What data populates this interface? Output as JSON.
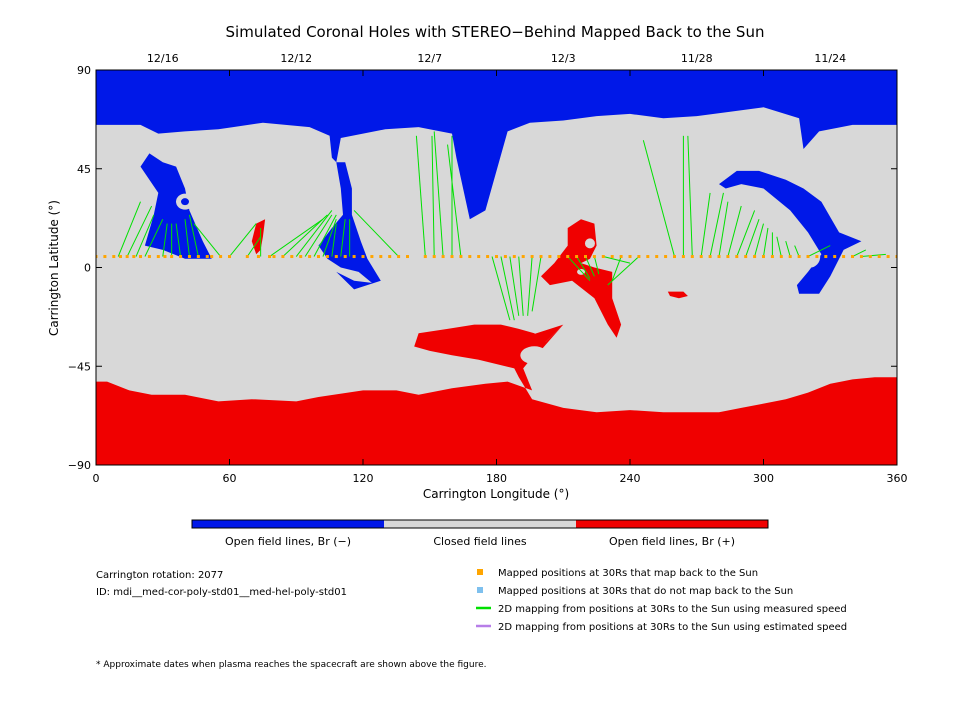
{
  "title": "Simulated Coronal Holes with STEREO−Behind Mapped Back to the Sun",
  "colors": {
    "open_negative": "#0018e8",
    "closed": "#d8d8d8",
    "open_positive": "#f00000",
    "mapped_point": "#ffa500",
    "unmapped_point": "#7ec0ee",
    "measured_line": "#00e000",
    "estimated_line": "#b77ee8"
  },
  "chart_data": {
    "type": "heatmap",
    "title": "Simulated Coronal Holes with STEREO−Behind Mapped Back to the Sun",
    "xlabel": "Carrington Longitude (°)",
    "ylabel": "Carrington Latitude (°)",
    "xlim": [
      0,
      360
    ],
    "ylim": [
      -90,
      90
    ],
    "x_ticks": [
      0,
      60,
      120,
      180,
      240,
      300,
      360
    ],
    "y_ticks": [
      90,
      45,
      0,
      -45,
      -90
    ],
    "date_ticks": [
      {
        "label": "12/16",
        "lon": 30
      },
      {
        "label": "12/12",
        "lon": 90
      },
      {
        "label": "12/7",
        "lon": 150
      },
      {
        "label": "12/3",
        "lon": 210
      },
      {
        "label": "11/28",
        "lon": 270
      },
      {
        "label": "11/24",
        "lon": 330
      }
    ],
    "colorbar": [
      {
        "label": "Open field lines, Br (−)",
        "color": "#0018e8"
      },
      {
        "label": "Closed field lines",
        "color": "#d8d8d8"
      },
      {
        "label": "Open field lines, Br (+)",
        "color": "#f00000"
      }
    ],
    "regions": {
      "north_polar_hole_negative": [
        [
          0,
          90
        ],
        [
          360,
          90
        ],
        [
          360,
          65
        ],
        [
          340,
          65
        ],
        [
          325,
          62
        ],
        [
          318,
          54
        ],
        [
          316,
          68
        ],
        [
          300,
          73
        ],
        [
          285,
          71
        ],
        [
          270,
          69
        ],
        [
          255,
          68
        ],
        [
          240,
          70
        ],
        [
          225,
          69
        ],
        [
          210,
          67
        ],
        [
          195,
          66
        ],
        [
          185,
          62
        ],
        [
          175,
          26
        ],
        [
          168,
          22
        ],
        [
          162,
          50
        ],
        [
          160,
          61
        ],
        [
          145,
          64
        ],
        [
          130,
          63
        ],
        [
          120,
          61
        ],
        [
          110,
          59
        ],
        [
          108,
          48
        ],
        [
          106,
          50
        ],
        [
          105,
          60
        ],
        [
          96,
          64
        ],
        [
          75,
          66
        ],
        [
          55,
          63
        ],
        [
          40,
          62
        ],
        [
          28,
          61
        ],
        [
          20,
          65
        ],
        [
          0,
          65
        ]
      ],
      "south_polar_hole_positive": [
        [
          0,
          -90
        ],
        [
          360,
          -90
        ],
        [
          360,
          -50
        ],
        [
          350,
          -50
        ],
        [
          340,
          -51
        ],
        [
          330,
          -53
        ],
        [
          320,
          -57
        ],
        [
          310,
          -60
        ],
        [
          300,
          -62
        ],
        [
          290,
          -64
        ],
        [
          280,
          -66
        ],
        [
          270,
          -66
        ],
        [
          255,
          -66
        ],
        [
          240,
          -65
        ],
        [
          225,
          -66
        ],
        [
          210,
          -64
        ],
        [
          196,
          -60
        ],
        [
          190,
          -50
        ],
        [
          184,
          -38
        ],
        [
          186,
          -34
        ],
        [
          198,
          -30
        ],
        [
          210,
          -26
        ],
        [
          200,
          -36
        ],
        [
          192,
          -46
        ],
        [
          196,
          -56
        ],
        [
          185,
          -52
        ],
        [
          175,
          -53
        ],
        [
          160,
          -55
        ],
        [
          145,
          -58
        ],
        [
          135,
          -56
        ],
        [
          120,
          -56
        ],
        [
          100,
          -59
        ],
        [
          90,
          -61
        ],
        [
          70,
          -60
        ],
        [
          55,
          -61
        ],
        [
          40,
          -58
        ],
        [
          25,
          -58
        ],
        [
          15,
          -56
        ],
        [
          5,
          -52
        ],
        [
          0,
          -52
        ]
      ],
      "negative_hole_lon30": [
        [
          20,
          46
        ],
        [
          24,
          40
        ],
        [
          28,
          34
        ],
        [
          26,
          24
        ],
        [
          22,
          10
        ],
        [
          30,
          8
        ],
        [
          40,
          4
        ],
        [
          52,
          4
        ],
        [
          48,
          12
        ],
        [
          42,
          26
        ],
        [
          40,
          36
        ],
        [
          36,
          46
        ],
        [
          30,
          48
        ],
        [
          24,
          52
        ]
      ],
      "negative_hole_lon110": [
        [
          108,
          48
        ],
        [
          110,
          36
        ],
        [
          111,
          24
        ],
        [
          106,
          18
        ],
        [
          100,
          10
        ],
        [
          104,
          4
        ],
        [
          110,
          0
        ],
        [
          118,
          -2
        ],
        [
          124,
          -7
        ],
        [
          116,
          -6
        ],
        [
          108,
          -2
        ],
        [
          116,
          -10
        ],
        [
          128,
          -6
        ],
        [
          122,
          4
        ],
        [
          119,
          12
        ],
        [
          115,
          24
        ],
        [
          115,
          36
        ],
        [
          112,
          48
        ]
      ],
      "negative_hole_lon300": [
        [
          283,
          36
        ],
        [
          290,
          38
        ],
        [
          300,
          36
        ],
        [
          312,
          26
        ],
        [
          320,
          16
        ],
        [
          326,
          6
        ],
        [
          320,
          -2
        ],
        [
          315,
          -8
        ],
        [
          316,
          -12
        ],
        [
          325,
          -12
        ],
        [
          330,
          -4
        ],
        [
          336,
          8
        ],
        [
          344,
          12
        ],
        [
          334,
          16
        ],
        [
          326,
          30
        ],
        [
          318,
          36
        ],
        [
          310,
          40
        ],
        [
          298,
          44
        ],
        [
          288,
          44
        ],
        [
          280,
          38
        ]
      ],
      "positive_hole_lon215": [
        [
          212,
          18
        ],
        [
          218,
          22
        ],
        [
          224,
          20
        ],
        [
          225,
          10
        ],
        [
          222,
          4
        ],
        [
          218,
          2
        ],
        [
          224,
          0
        ],
        [
          232,
          -2
        ],
        [
          232,
          -14
        ],
        [
          236,
          -26
        ],
        [
          234,
          -32
        ],
        [
          230,
          -26
        ],
        [
          224,
          -14
        ],
        [
          214,
          -6
        ],
        [
          204,
          -8
        ],
        [
          200,
          -4
        ],
        [
          206,
          2
        ],
        [
          212,
          10
        ]
      ],
      "positive_hole_lon200_south": [
        [
          145,
          -30
        ],
        [
          158,
          -28
        ],
        [
          170,
          -26
        ],
        [
          182,
          -26
        ],
        [
          190,
          -28
        ],
        [
          197,
          -30
        ],
        [
          202,
          -34
        ],
        [
          210,
          -26
        ],
        [
          198,
          -40
        ],
        [
          188,
          -46
        ],
        [
          172,
          -42
        ],
        [
          160,
          -40
        ],
        [
          150,
          -38
        ],
        [
          143,
          -36
        ]
      ],
      "positive_hole_lon73": [
        [
          72,
          20
        ],
        [
          76,
          22
        ],
        [
          75,
          14
        ],
        [
          74,
          8
        ],
        [
          72,
          6
        ],
        [
          70,
          12
        ]
      ],
      "positive_hole_lon262": [
        [
          257,
          -11
        ],
        [
          264,
          -11
        ],
        [
          266,
          -13
        ],
        [
          262,
          -14
        ],
        [
          258,
          -13
        ]
      ]
    },
    "mapped_points": {
      "lat": 5,
      "lon": [
        0,
        4,
        8,
        11,
        14,
        17,
        20,
        24,
        28,
        31,
        34,
        38,
        42,
        46,
        50,
        52,
        56,
        60,
        68,
        73,
        78,
        80,
        84,
        88,
        92,
        96,
        100,
        104,
        108,
        112,
        116,
        120,
        124,
        128,
        132,
        136,
        140,
        148,
        152,
        156,
        160,
        164,
        168,
        172,
        176,
        180,
        184,
        188,
        192,
        196,
        200,
        204,
        208,
        212,
        216,
        220,
        224,
        228,
        232,
        236,
        240,
        244,
        248,
        252,
        256,
        260,
        264,
        268,
        272,
        276,
        280,
        284,
        288,
        292,
        296,
        300,
        304,
        308,
        312,
        316,
        320,
        324,
        328,
        332,
        336,
        340,
        344,
        348,
        352,
        356,
        360
      ]
    },
    "measured_mapping_lines": [
      {
        "from_lon": 10,
        "to": [
          20,
          30
        ]
      },
      {
        "from_lon": 14,
        "to": [
          25,
          28
        ]
      },
      {
        "from_lon": 18,
        "to": [
          26,
          24
        ]
      },
      {
        "from_lon": 22,
        "to": [
          30,
          22
        ]
      },
      {
        "from_lon": 30,
        "to": [
          32,
          20
        ]
      },
      {
        "from_lon": 34,
        "to": [
          34,
          20
        ]
      },
      {
        "from_lon": 38,
        "to": [
          36,
          20
        ]
      },
      {
        "from_lon": 42,
        "to": [
          40,
          22
        ]
      },
      {
        "from_lon": 46,
        "to": [
          42,
          24
        ]
      },
      {
        "from_lon": 56,
        "to": [
          44,
          20
        ]
      },
      {
        "from_lon": 60,
        "to": [
          72,
          20
        ]
      },
      {
        "from_lon": 68,
        "to": [
          74,
          14
        ]
      },
      {
        "from_lon": 74,
        "to": [
          74,
          18
        ]
      },
      {
        "from_lon": 78,
        "to": [
          102,
          22
        ]
      },
      {
        "from_lon": 84,
        "to": [
          104,
          24
        ]
      },
      {
        "from_lon": 90,
        "to": [
          106,
          26
        ]
      },
      {
        "from_lon": 94,
        "to": [
          106,
          24
        ]
      },
      {
        "from_lon": 98,
        "to": [
          108,
          24
        ]
      },
      {
        "from_lon": 102,
        "to": [
          108,
          22
        ]
      },
      {
        "from_lon": 106,
        "to": [
          108,
          20
        ]
      },
      {
        "from_lon": 110,
        "to": [
          112,
          22
        ]
      },
      {
        "from_lon": 114,
        "to": [
          114,
          22
        ]
      },
      {
        "from_lon": 136,
        "to": [
          116,
          26
        ]
      },
      {
        "from_lon": 148,
        "to": [
          144,
          60
        ]
      },
      {
        "from_lon": 152,
        "to": [
          151,
          60
        ]
      },
      {
        "from_lon": 156,
        "to": [
          152,
          62
        ]
      },
      {
        "from_lon": 160,
        "to": [
          160,
          60
        ]
      },
      {
        "from_lon": 164,
        "to": [
          158,
          56
        ]
      },
      {
        "from_lon": 178,
        "to": [
          186,
          -24
        ]
      },
      {
        "from_lon": 182,
        "to": [
          188,
          -24
        ]
      },
      {
        "from_lon": 186,
        "to": [
          190,
          -22
        ]
      },
      {
        "from_lon": 190,
        "to": [
          192,
          -22
        ]
      },
      {
        "from_lon": 196,
        "to": [
          194,
          -22
        ]
      },
      {
        "from_lon": 200,
        "to": [
          196,
          -20
        ]
      },
      {
        "from_lon": 212,
        "to": [
          222,
          -6
        ]
      },
      {
        "from_lon": 216,
        "to": [
          222,
          -5
        ]
      },
      {
        "from_lon": 220,
        "to": [
          224,
          -4
        ]
      },
      {
        "from_lon": 224,
        "to": [
          226,
          -3
        ]
      },
      {
        "from_lon": 228,
        "to": [
          240,
          2
        ]
      },
      {
        "from_lon": 236,
        "to": [
          232,
          -6
        ]
      },
      {
        "from_lon": 244,
        "to": [
          230,
          -8
        ]
      },
      {
        "from_lon": 260,
        "to": [
          246,
          58
        ]
      },
      {
        "from_lon": 264,
        "to": [
          264,
          60
        ]
      },
      {
        "from_lon": 268,
        "to": [
          266,
          60
        ]
      },
      {
        "from_lon": 272,
        "to": [
          276,
          34
        ]
      },
      {
        "from_lon": 276,
        "to": [
          282,
          34
        ]
      },
      {
        "from_lon": 280,
        "to": [
          284,
          30
        ]
      },
      {
        "from_lon": 284,
        "to": [
          290,
          28
        ]
      },
      {
        "from_lon": 288,
        "to": [
          296,
          26
        ]
      },
      {
        "from_lon": 292,
        "to": [
          298,
          22
        ]
      },
      {
        "from_lon": 296,
        "to": [
          300,
          20
        ]
      },
      {
        "from_lon": 300,
        "to": [
          302,
          18
        ]
      },
      {
        "from_lon": 304,
        "to": [
          304,
          16
        ]
      },
      {
        "from_lon": 308,
        "to": [
          306,
          14
        ]
      },
      {
        "from_lon": 312,
        "to": [
          310,
          12
        ]
      },
      {
        "from_lon": 316,
        "to": [
          314,
          10
        ]
      },
      {
        "from_lon": 320,
        "to": [
          330,
          10
        ]
      },
      {
        "from_lon": 340,
        "to": [
          346,
          8
        ]
      },
      {
        "from_lon": 344,
        "to": [
          355,
          6
        ]
      }
    ],
    "grid": false,
    "legend_position": "bottom"
  },
  "footer": {
    "rotation": "Carrington rotation: 2077",
    "id": "ID: mdi__med-cor-poly-std01__med-hel-poly-std01",
    "note": "* Approximate dates when plasma reaches the spacecraft are shown above the figure."
  },
  "legend": [
    {
      "label": "Mapped positions at 30Rs that map back to the Sun",
      "kind": "square",
      "color": "#ffa500"
    },
    {
      "label": "Mapped positions at 30Rs that do not map back to the Sun",
      "kind": "square",
      "color": "#7ec0ee"
    },
    {
      "label": "2D mapping from positions at 30Rs to the Sun using measured speed",
      "kind": "line",
      "color": "#00e000"
    },
    {
      "label": "2D mapping from positions at 30Rs to the Sun using estimated speed",
      "kind": "line",
      "color": "#b77ee8"
    }
  ]
}
